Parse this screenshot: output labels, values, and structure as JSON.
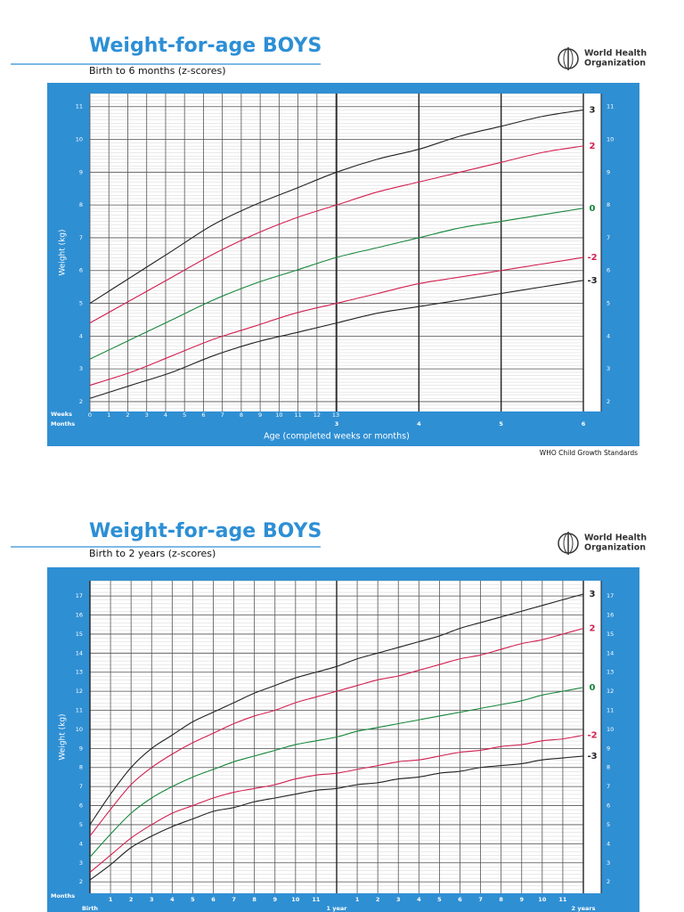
{
  "organization": [
    "World Health",
    "Organization"
  ],
  "footer": "WHO Child Growth Standards",
  "chart_data": [
    {
      "type": "line",
      "title": "Weight-for-age BOYS",
      "subtitle": "Birth to 6 months (z-scores)",
      "ylabel": "Weight (kg)",
      "xlabel": "Age (completed weeks or months)",
      "xtick_rows": [
        "Weeks",
        "Months"
      ],
      "x": [
        0,
        0.5,
        1,
        1.5,
        2,
        2.5,
        3,
        3.5,
        4,
        4.5,
        5,
        5.5,
        6
      ],
      "series": [
        {
          "name": "3",
          "color": "#222222",
          "values": [
            5.0,
            5.8,
            6.6,
            7.4,
            8.0,
            8.5,
            9.0,
            9.4,
            9.7,
            10.1,
            10.4,
            10.7,
            10.9
          ]
        },
        {
          "name": "2",
          "color": "#d21f4f",
          "values": [
            4.4,
            5.1,
            5.8,
            6.5,
            7.1,
            7.6,
            8.0,
            8.4,
            8.7,
            9.0,
            9.3,
            9.6,
            9.8
          ]
        },
        {
          "name": "0",
          "color": "#16873a",
          "values": [
            3.3,
            3.9,
            4.5,
            5.1,
            5.6,
            6.0,
            6.4,
            6.7,
            7.0,
            7.3,
            7.5,
            7.7,
            7.9
          ]
        },
        {
          "name": "-2",
          "color": "#d21f4f",
          "values": [
            2.5,
            2.9,
            3.4,
            3.9,
            4.3,
            4.7,
            5.0,
            5.3,
            5.6,
            5.8,
            6.0,
            6.2,
            6.4
          ]
        },
        {
          "name": "-3",
          "color": "#222222",
          "values": [
            2.1,
            2.5,
            2.9,
            3.4,
            3.8,
            4.1,
            4.4,
            4.7,
            4.9,
            5.1,
            5.3,
            5.5,
            5.7
          ]
        }
      ],
      "xlim": [
        0,
        6
      ],
      "ylim": [
        1.7,
        11.4
      ],
      "yticks": [
        2,
        3,
        4,
        5,
        6,
        7,
        8,
        9,
        10,
        11
      ],
      "week_ticks": [
        0,
        {
          "value": 0.23,
          "label": "1"
        },
        {
          "value": 0.46,
          "label": "2"
        },
        {
          "value": 0.69,
          "label": "3"
        },
        {
          "value": 0.92,
          "label": "4"
        },
        {
          "value": 1.15,
          "label": "5"
        },
        {
          "value": 1.38,
          "label": "6"
        },
        {
          "value": 1.61,
          "label": "7"
        },
        {
          "value": 1.84,
          "label": "8"
        },
        {
          "value": 2.07,
          "label": "9"
        },
        {
          "value": 2.3,
          "label": "10"
        },
        {
          "value": 2.53,
          "label": "11"
        },
        {
          "value": 2.76,
          "label": "12"
        },
        {
          "value": 2.99,
          "label": "13"
        }
      ],
      "xticks": [
        3,
        4,
        5,
        6
      ],
      "grid": true
    },
    {
      "type": "line",
      "title": "Weight-for-age BOYS",
      "subtitle": "Birth to 2 years (z-scores)",
      "ylabel": "Weight (kg)",
      "xtick_rows": [
        "Months"
      ],
      "x": [
        0,
        1,
        2,
        3,
        4,
        5,
        6,
        7,
        8,
        9,
        10,
        11,
        12,
        13,
        14,
        15,
        16,
        17,
        18,
        19,
        20,
        21,
        22,
        23,
        24
      ],
      "series": [
        {
          "name": "3",
          "color": "#222222",
          "values": [
            5.0,
            6.6,
            8.0,
            9.0,
            9.7,
            10.4,
            10.9,
            11.4,
            11.9,
            12.3,
            12.7,
            13.0,
            13.3,
            13.7,
            14.0,
            14.3,
            14.6,
            14.9,
            15.3,
            15.6,
            15.9,
            16.2,
            16.5,
            16.8,
            17.1
          ]
        },
        {
          "name": "2",
          "color": "#d21f4f",
          "values": [
            4.4,
            5.8,
            7.1,
            8.0,
            8.7,
            9.3,
            9.8,
            10.3,
            10.7,
            11.0,
            11.4,
            11.7,
            12.0,
            12.3,
            12.6,
            12.8,
            13.1,
            13.4,
            13.7,
            13.9,
            14.2,
            14.5,
            14.7,
            15.0,
            15.3
          ]
        },
        {
          "name": "0",
          "color": "#16873a",
          "values": [
            3.3,
            4.5,
            5.6,
            6.4,
            7.0,
            7.5,
            7.9,
            8.3,
            8.6,
            8.9,
            9.2,
            9.4,
            9.6,
            9.9,
            10.1,
            10.3,
            10.5,
            10.7,
            10.9,
            11.1,
            11.3,
            11.5,
            11.8,
            12.0,
            12.2
          ]
        },
        {
          "name": "-2",
          "color": "#d21f4f",
          "values": [
            2.5,
            3.4,
            4.3,
            5.0,
            5.6,
            6.0,
            6.4,
            6.7,
            6.9,
            7.1,
            7.4,
            7.6,
            7.7,
            7.9,
            8.1,
            8.3,
            8.4,
            8.6,
            8.8,
            8.9,
            9.1,
            9.2,
            9.4,
            9.5,
            9.7
          ]
        },
        {
          "name": "-3",
          "color": "#222222",
          "values": [
            2.1,
            2.9,
            3.8,
            4.4,
            4.9,
            5.3,
            5.7,
            5.9,
            6.2,
            6.4,
            6.6,
            6.8,
            6.9,
            7.1,
            7.2,
            7.4,
            7.5,
            7.7,
            7.8,
            8.0,
            8.1,
            8.2,
            8.4,
            8.5,
            8.6
          ]
        }
      ],
      "xlim": [
        0,
        24
      ],
      "ylim": [
        1.4,
        17.8
      ],
      "yticks": [
        2,
        3,
        4,
        5,
        6,
        7,
        8,
        9,
        10,
        11,
        12,
        13,
        14,
        15,
        16,
        17
      ],
      "xticks": [
        {
          "value": 0,
          "label": "Birth"
        },
        1,
        2,
        3,
        4,
        5,
        6,
        7,
        8,
        9,
        10,
        11,
        {
          "value": 12,
          "label": "1 year"
        },
        {
          "value": 13,
          "label": "1"
        },
        {
          "value": 14,
          "label": "2"
        },
        {
          "value": 15,
          "label": "3"
        },
        {
          "value": 16,
          "label": "4"
        },
        {
          "value": 17,
          "label": "5"
        },
        {
          "value": 18,
          "label": "6"
        },
        {
          "value": 19,
          "label": "7"
        },
        {
          "value": 20,
          "label": "8"
        },
        {
          "value": 21,
          "label": "9"
        },
        {
          "value": 22,
          "label": "10"
        },
        {
          "value": 23,
          "label": "11"
        },
        {
          "value": 24,
          "label": "2 years"
        }
      ],
      "grid": true
    }
  ]
}
